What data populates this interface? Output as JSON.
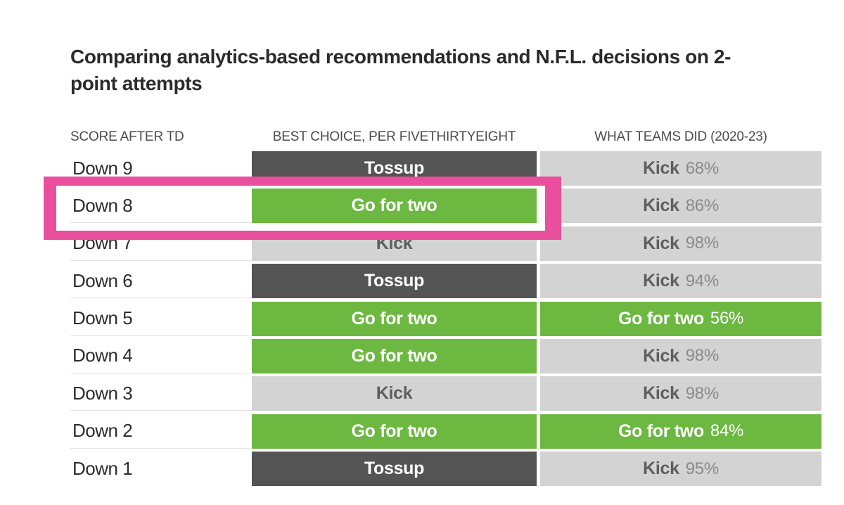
{
  "title": {
    "full": "Comparing analytics-based recommendations and N.F.L. decisions on 2-point attempts",
    "line1": "Comparing analytics-based recommendations and N.F.L. decisions on 2-",
    "line2": "point attempts"
  },
  "columns": {
    "score": "SCORE AFTER TD",
    "best_choice": "BEST CHOICE, PER FIVETHIRTYEIGHT",
    "teams_did": "WHAT TEAMS DID (2020-23)"
  },
  "rows": [
    {
      "score": "Down 9",
      "best": {
        "label": "Tossup",
        "type": "tossup"
      },
      "teams": {
        "label": "Kick",
        "pct": "68%",
        "type": "kick"
      }
    },
    {
      "score": "Down 8",
      "best": {
        "label": "Go for two",
        "type": "go"
      },
      "teams": {
        "label": "Kick",
        "pct": "86%",
        "type": "kick"
      },
      "highlighted": true
    },
    {
      "score": "Down 7",
      "best": {
        "label": "Kick",
        "type": "kick"
      },
      "teams": {
        "label": "Kick",
        "pct": "98%",
        "type": "kick"
      }
    },
    {
      "score": "Down 6",
      "best": {
        "label": "Tossup",
        "type": "tossup"
      },
      "teams": {
        "label": "Kick",
        "pct": "94%",
        "type": "kick"
      }
    },
    {
      "score": "Down 5",
      "best": {
        "label": "Go for two",
        "type": "go"
      },
      "teams": {
        "label": "Go for two",
        "pct": "56%",
        "type": "go"
      }
    },
    {
      "score": "Down 4",
      "best": {
        "label": "Go for two",
        "type": "go"
      },
      "teams": {
        "label": "Kick",
        "pct": "98%",
        "type": "kick"
      }
    },
    {
      "score": "Down 3",
      "best": {
        "label": "Kick",
        "type": "kick"
      },
      "teams": {
        "label": "Kick",
        "pct": "98%",
        "type": "kick"
      }
    },
    {
      "score": "Down 2",
      "best": {
        "label": "Go for two",
        "type": "go"
      },
      "teams": {
        "label": "Go for two",
        "pct": "84%",
        "type": "go"
      }
    },
    {
      "score": "Down 1",
      "best": {
        "label": "Tossup",
        "type": "tossup"
      },
      "teams": {
        "label": "Kick",
        "pct": "95%",
        "type": "kick"
      }
    }
  ],
  "highlight": {
    "row": "Down 8",
    "covers_columns": [
      "score",
      "best_choice"
    ]
  },
  "colors": {
    "go_green": "#6CB840",
    "tossup_dark": "#545454",
    "kick_gray": "#D3D3D3",
    "highlight_pink": "#E94F9C",
    "title_text": "#2B2B2B",
    "header_text": "#4C4C4C",
    "label_text": "#2D2D2D"
  },
  "chart_data": {
    "type": "table",
    "title": "Comparing analytics-based recommendations and N.F.L. decisions on 2-point attempts",
    "columns": [
      "SCORE AFTER TD",
      "BEST CHOICE, PER FIVETHIRTYEIGHT",
      "WHAT TEAMS DID (2020-23)"
    ],
    "rows": [
      [
        "Down 9",
        "Tossup",
        "Kick 68%"
      ],
      [
        "Down 8",
        "Go for two",
        "Kick 86%"
      ],
      [
        "Down 7",
        "Kick",
        "Kick 98%"
      ],
      [
        "Down 6",
        "Tossup",
        "Kick 94%"
      ],
      [
        "Down 5",
        "Go for two",
        "Go for two 56%"
      ],
      [
        "Down 4",
        "Go for two",
        "Kick 98%"
      ],
      [
        "Down 3",
        "Kick",
        "Kick 98%"
      ],
      [
        "Down 2",
        "Go for two",
        "Go for two 84%"
      ],
      [
        "Down 1",
        "Tossup",
        "Kick 95%"
      ]
    ],
    "annotations": [
      "Pink rectangle highlights the Down 8 row (score + best-choice columns)"
    ]
  }
}
